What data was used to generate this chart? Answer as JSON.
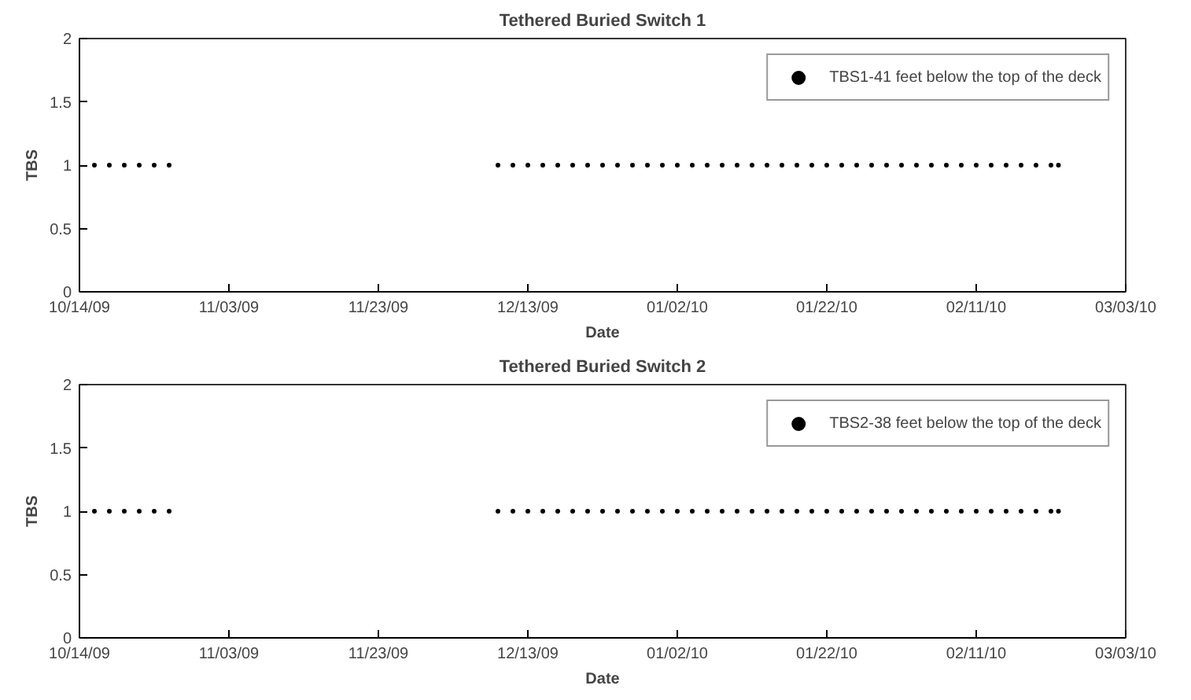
{
  "chart_data": [
    {
      "type": "scatter",
      "title": "Tethered Buried Switch 1",
      "xlabel": "Date",
      "ylabel": "TBS",
      "marker": "circle",
      "legend": "top right",
      "grid": false,
      "xlim": [
        "2009-10-14",
        "2010-03-03"
      ],
      "ylim": [
        0,
        2
      ],
      "xticks": [
        {
          "value": "2009-10-14",
          "label": "10/14/09"
        },
        {
          "value": "2009-11-03",
          "label": "11/03/09"
        },
        {
          "value": "2009-11-23",
          "label": "11/23/09"
        },
        {
          "value": "2009-12-13",
          "label": "12/13/09"
        },
        {
          "value": "2010-01-02",
          "label": "01/02/10"
        },
        {
          "value": "2010-01-22",
          "label": "01/22/10"
        },
        {
          "value": "2010-02-11",
          "label": "02/11/10"
        },
        {
          "value": "2010-03-03",
          "label": "03/03/10"
        }
      ],
      "yticks": [
        0,
        0.5,
        1,
        1.5,
        2
      ],
      "series": [
        {
          "name": "TBS1-41 feet below the top of the deck",
          "color": "#000000",
          "x": [
            "2009-10-16",
            "2009-10-18",
            "2009-10-20",
            "2009-10-22",
            "2009-10-24",
            "2009-10-26",
            "2009-12-09",
            "2009-12-11",
            "2009-12-13",
            "2009-12-15",
            "2009-12-17",
            "2009-12-19",
            "2009-12-21",
            "2009-12-23",
            "2009-12-25",
            "2009-12-27",
            "2009-12-29",
            "2009-12-31",
            "2010-01-02",
            "2010-01-04",
            "2010-01-06",
            "2010-01-08",
            "2010-01-10",
            "2010-01-12",
            "2010-01-14",
            "2010-01-16",
            "2010-01-18",
            "2010-01-20",
            "2010-01-22",
            "2010-01-24",
            "2010-01-26",
            "2010-01-28",
            "2010-01-30",
            "2010-02-01",
            "2010-02-03",
            "2010-02-05",
            "2010-02-07",
            "2010-02-09",
            "2010-02-11",
            "2010-02-13",
            "2010-02-15",
            "2010-02-17",
            "2010-02-19",
            "2010-02-21",
            "2010-02-22"
          ],
          "values": [
            1,
            1,
            1,
            1,
            1,
            1,
            1,
            1,
            1,
            1,
            1,
            1,
            1,
            1,
            1,
            1,
            1,
            1,
            1,
            1,
            1,
            1,
            1,
            1,
            1,
            1,
            1,
            1,
            1,
            1,
            1,
            1,
            1,
            1,
            1,
            1,
            1,
            1,
            1,
            1,
            1,
            1,
            1,
            1,
            1
          ]
        }
      ]
    },
    {
      "type": "scatter",
      "title": "Tethered Buried Switch 2",
      "xlabel": "Date",
      "ylabel": "TBS",
      "marker": "circle",
      "legend": "top right",
      "grid": false,
      "xlim": [
        "2009-10-14",
        "2010-03-03"
      ],
      "ylim": [
        0,
        2
      ],
      "xticks": [
        {
          "value": "2009-10-14",
          "label": "10/14/09"
        },
        {
          "value": "2009-11-03",
          "label": "11/03/09"
        },
        {
          "value": "2009-11-23",
          "label": "11/23/09"
        },
        {
          "value": "2009-12-13",
          "label": "12/13/09"
        },
        {
          "value": "2010-01-02",
          "label": "01/02/10"
        },
        {
          "value": "2010-01-22",
          "label": "01/22/10"
        },
        {
          "value": "2010-02-11",
          "label": "02/11/10"
        },
        {
          "value": "2010-03-03",
          "label": "03/03/10"
        }
      ],
      "yticks": [
        0,
        0.5,
        1,
        1.5,
        2
      ],
      "series": [
        {
          "name": "TBS2-38 feet below the top of the deck",
          "color": "#000000",
          "x": [
            "2009-10-16",
            "2009-10-18",
            "2009-10-20",
            "2009-10-22",
            "2009-10-24",
            "2009-10-26",
            "2009-12-09",
            "2009-12-11",
            "2009-12-13",
            "2009-12-15",
            "2009-12-17",
            "2009-12-19",
            "2009-12-21",
            "2009-12-23",
            "2009-12-25",
            "2009-12-27",
            "2009-12-29",
            "2009-12-31",
            "2010-01-02",
            "2010-01-04",
            "2010-01-06",
            "2010-01-08",
            "2010-01-10",
            "2010-01-12",
            "2010-01-14",
            "2010-01-16",
            "2010-01-18",
            "2010-01-20",
            "2010-01-22",
            "2010-01-24",
            "2010-01-26",
            "2010-01-28",
            "2010-01-30",
            "2010-02-01",
            "2010-02-03",
            "2010-02-05",
            "2010-02-07",
            "2010-02-09",
            "2010-02-11",
            "2010-02-13",
            "2010-02-15",
            "2010-02-17",
            "2010-02-19",
            "2010-02-21",
            "2010-02-22"
          ],
          "values": [
            1,
            1,
            1,
            1,
            1,
            1,
            1,
            1,
            1,
            1,
            1,
            1,
            1,
            1,
            1,
            1,
            1,
            1,
            1,
            1,
            1,
            1,
            1,
            1,
            1,
            1,
            1,
            1,
            1,
            1,
            1,
            1,
            1,
            1,
            1,
            1,
            1,
            1,
            1,
            1,
            1,
            1,
            1,
            1,
            1
          ]
        }
      ]
    }
  ]
}
